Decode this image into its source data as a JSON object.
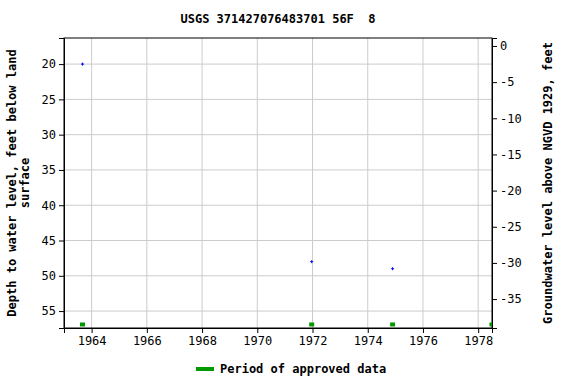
{
  "chart_data": {
    "type": "scatter",
    "title": "USGS 371427076483701 56F  8",
    "y_label": [
      "Depth to water level, feet below land",
      "surface"
    ],
    "y2_label": "Groundwater level above NGVD 1929, feet",
    "xlim": [
      1963.0,
      1978.5
    ],
    "xticks": [
      1964,
      1966,
      1968,
      1970,
      1972,
      1974,
      1976,
      1978
    ],
    "ylim": [
      16.3,
      57.4
    ],
    "yticks": [
      20,
      25,
      30,
      35,
      40,
      45,
      50,
      55
    ],
    "y2lim": [
      1.1,
      -39.0
    ],
    "y2ticks": [
      0,
      -5,
      -10,
      -15,
      -20,
      -25,
      -30,
      -35
    ],
    "grid": true,
    "series": [
      {
        "color": "#0000ff",
        "marker": "plus",
        "x": [
          1963.67,
          1971.97,
          1974.9
        ],
        "values": [
          20,
          48,
          49
        ]
      },
      {
        "name": "Period of approved data",
        "color": "#009900",
        "marker": "square",
        "x": [
          1963.67,
          1971.97,
          1974.9,
          1978.5
        ],
        "values": [
          56.9,
          56.9,
          56.9,
          56.9
        ]
      }
    ],
    "legend": "bottom"
  }
}
